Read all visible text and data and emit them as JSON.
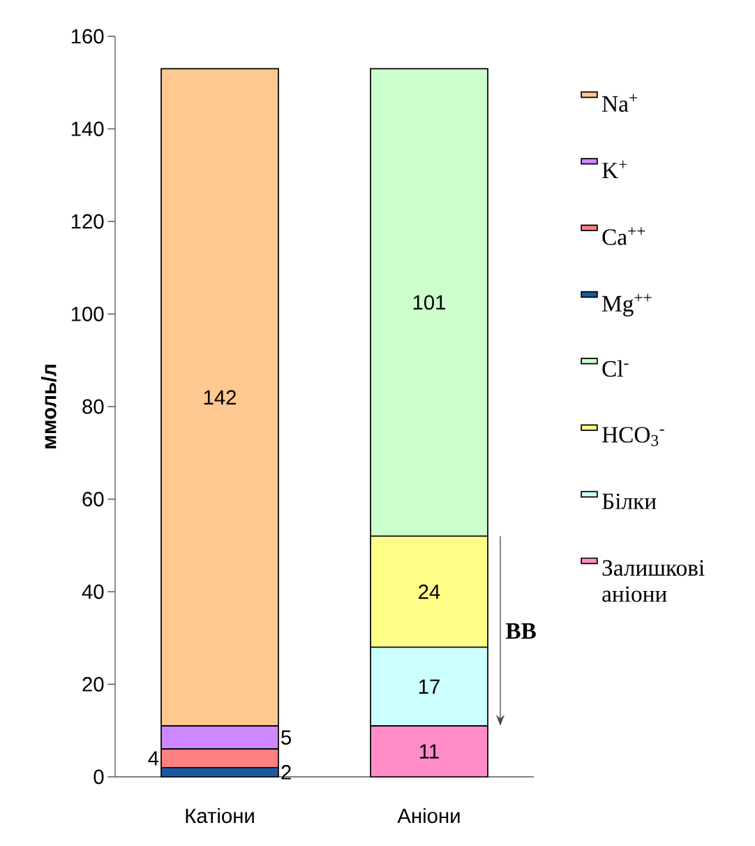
{
  "chart_data": {
    "type": "bar",
    "stacked": true,
    "ylabel": "ммоль/л",
    "categories": [
      "Катіони",
      "Аніони"
    ],
    "series": [
      {
        "name": "Mg$^{++}$",
        "color": "#1a5aa0",
        "values": [
          2,
          null
        ]
      },
      {
        "name": "Ca$^{++}$",
        "color": "#ff8080",
        "values": [
          4,
          null
        ]
      },
      {
        "name": "K$^{+}$",
        "color": "#cc88ff",
        "values": [
          5,
          null
        ]
      },
      {
        "name": "Na$^{+}$",
        "color": "#ffc890",
        "values": [
          142,
          null
        ]
      },
      {
        "name": "Залишкові аніони",
        "color": "#ff8cc6",
        "values": [
          null,
          11
        ]
      },
      {
        "name": "Білки",
        "color": "#ccffff",
        "values": [
          null,
          17
        ]
      },
      {
        "name": "HCO$_{3}$$^{-}$",
        "color": "#ffff88",
        "values": [
          null,
          24
        ]
      },
      {
        "name": "Cl$^{-}$",
        "color": "#ccffcc",
        "values": [
          null,
          101
        ]
      }
    ],
    "ylim": [
      0,
      160
    ],
    "yticks": [
      0,
      20,
      40,
      60,
      80,
      100,
      120,
      140,
      160
    ],
    "data_labels": true,
    "legend": "right",
    "grid": false,
    "annotations": [
      "BB"
    ]
  }
}
